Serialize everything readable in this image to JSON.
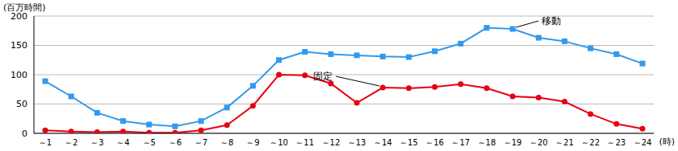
{
  "chart_data": {
    "type": "line",
    "y_label": "(百万時間)",
    "x_label": "(時)",
    "categories": [
      "～1",
      "～2",
      "～3",
      "～4",
      "～5",
      "～6",
      "～7",
      "～8",
      "～9",
      "～10",
      "～11",
      "～12",
      "～13",
      "～14",
      "～15",
      "～16",
      "～17",
      "～18",
      "～19",
      "～20",
      "～21",
      "～22",
      "～23",
      "～24"
    ],
    "series": [
      {
        "name": "移動",
        "color": "#3399ee",
        "marker": "square",
        "values": [
          89,
          63,
          35,
          21,
          15,
          12,
          21,
          44,
          81,
          125,
          139,
          135,
          133,
          131,
          130,
          140,
          153,
          180,
          178,
          163,
          157,
          145,
          135,
          119
        ]
      },
      {
        "name": "固定",
        "color": "#e60012",
        "marker": "circle",
        "values": [
          5,
          3,
          2,
          3,
          1,
          1,
          5,
          14,
          47,
          100,
          99,
          85,
          52,
          78,
          77,
          79,
          84,
          77,
          63,
          61,
          54,
          33,
          16,
          8
        ]
      }
    ],
    "ylim": [
      0,
      200
    ],
    "yticks": [
      0,
      50,
      100,
      150,
      200
    ],
    "grid": true,
    "legend": "none"
  }
}
